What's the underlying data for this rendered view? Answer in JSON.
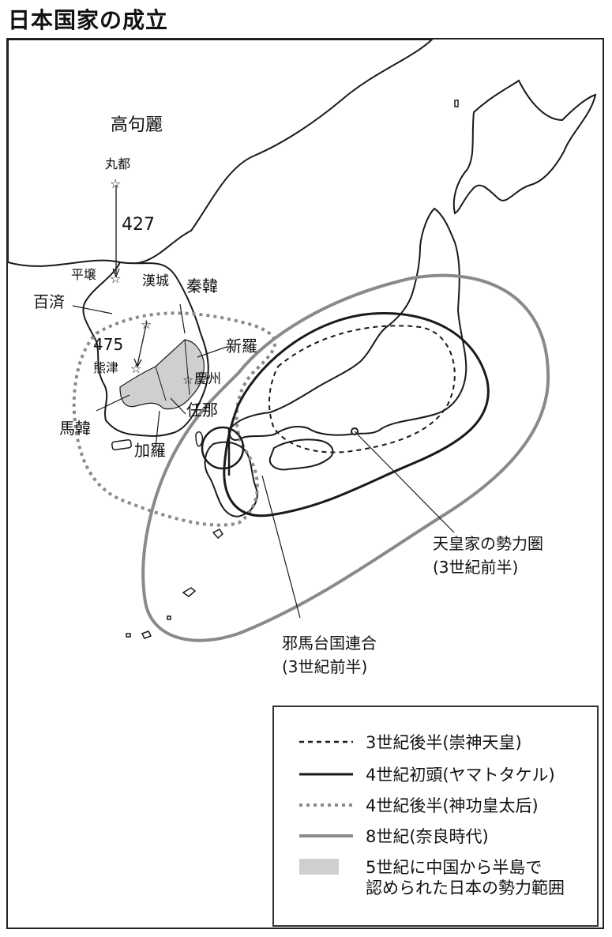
{
  "title": "日本国家の成立",
  "places": {
    "goguryeo": "高句麗",
    "hwando": "丸都",
    "year427": "427",
    "pyongyang": "平壌",
    "hanseong": "漢城",
    "baekje": "百済",
    "year475": "475",
    "ungjin": "熊津",
    "jinhan": "秦韓",
    "silla": "新羅",
    "gyeongju": "慶州",
    "mimana": "任那",
    "mahan": "馬韓",
    "gaya": "加羅",
    "imperial_sphere": "天皇家の勢力圏",
    "imperial_sphere_date": "(3世紀前半)",
    "yamatai": "邪馬台国連合",
    "yamatai_date": "(3世紀前半)"
  },
  "legend": [
    {
      "style": "dashed-black",
      "text": "3世紀後半(崇神天皇)"
    },
    {
      "style": "solid-black",
      "text": "4世紀初頭(ヤマトタケル)"
    },
    {
      "style": "dotted-gray",
      "text": "4世紀後半(神功皇太后)"
    },
    {
      "style": "solid-gray",
      "text": "8世紀(奈良時代)"
    },
    {
      "style": "gray-fill",
      "text_line1": "5世紀に中国から半島で",
      "text_line2": "認められた日本の勢力範囲"
    }
  ],
  "colors": {
    "land": "#ffffff",
    "coast": "#1a1a1a",
    "gray_line": "#8a8a8a",
    "gray_fill": "#cfcfcf"
  }
}
